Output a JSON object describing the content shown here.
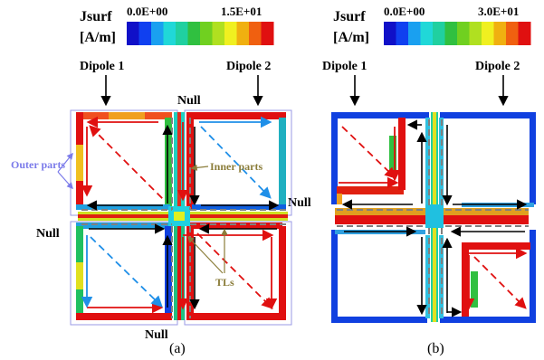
{
  "panel_a": {
    "legend_label_line1": "Jsurf",
    "legend_label_line2": "[A/m]",
    "legend_min": "0.0E+00",
    "legend_max": "1.5E+01",
    "dipole1": "Dipole 1",
    "dipole2": "Dipole 2",
    "null_top": "Null",
    "null_right": "Null",
    "null_left": "Null",
    "null_bottom": "Null",
    "outer_parts": "Outer parts",
    "inner_parts": "Inner parts",
    "tls": "TLs",
    "caption": "(a)"
  },
  "panel_b": {
    "legend_label_line1": "Jsurf",
    "legend_label_line2": "[A/m]",
    "legend_min": "0.0E+00",
    "legend_max": "3.0E+01",
    "dipole1": "Dipole 1",
    "dipole2": "Dipole 2",
    "caption": "(b)"
  },
  "colors": {
    "outer_parts_label": "#7b7bea",
    "inner_parts_label": "#8b7d3a",
    "arrow_red": "#e01010",
    "arrow_blue": "#1f8fe8",
    "arrow_black": "#000000",
    "dashed_gray": "#808080"
  },
  "colorbar_stops": [
    "#1010c8",
    "#1040f0",
    "#1aa0f0",
    "#20d8d8",
    "#20d0a0",
    "#30c040",
    "#70d020",
    "#b0e020",
    "#f0f020",
    "#f0b010",
    "#f06010",
    "#e01010"
  ]
}
